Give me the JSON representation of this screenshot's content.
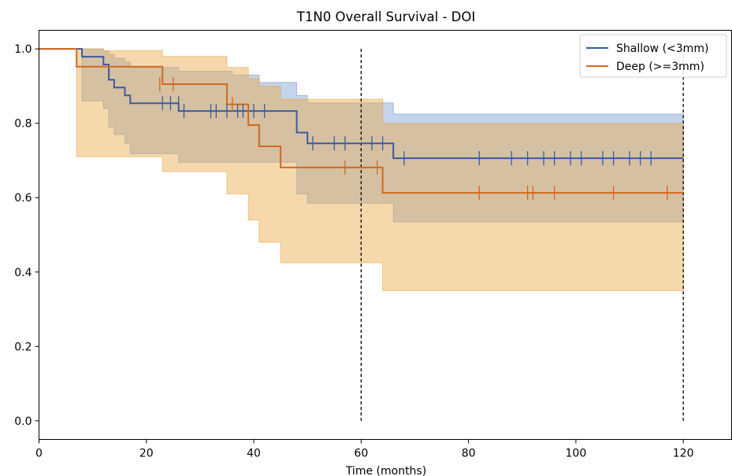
{
  "chart_data": {
    "type": "line",
    "title": "T1N0 Overall Survival - DOI",
    "xlabel": "Time (months)",
    "ylabel": "",
    "xlim": [
      0,
      129
    ],
    "ylim": [
      -0.05,
      1.05
    ],
    "xticks": [
      0,
      20,
      40,
      60,
      80,
      100,
      120
    ],
    "xtick_labels": [
      "0",
      "20",
      "40",
      "60",
      "80",
      "100",
      "120"
    ],
    "yticks": [
      0.0,
      0.2,
      0.4,
      0.6,
      0.8,
      1.0
    ],
    "ytick_labels": [
      "0.0",
      "0.2",
      "0.4",
      "0.6",
      "0.8",
      "1.0"
    ],
    "grid": false,
    "legend_position": "top-right",
    "reference_lines_x": [
      60,
      120
    ],
    "series": [
      {
        "name": "Shallow (<3mm)",
        "color": "#3a5ba0",
        "band_color": "#7a9fd3",
        "steps": [
          [
            0,
            1.0
          ],
          [
            8,
            0.979
          ],
          [
            12,
            0.958
          ],
          [
            13,
            0.917
          ],
          [
            14,
            0.896
          ],
          [
            16,
            0.875
          ],
          [
            17,
            0.854
          ],
          [
            26,
            0.833
          ],
          [
            48,
            0.775
          ],
          [
            50,
            0.746
          ],
          [
            66,
            0.706
          ],
          [
            120,
            0.706
          ]
        ],
        "ci_upper": [
          [
            0,
            1.0
          ],
          [
            8,
            1.0
          ],
          [
            12,
            0.995
          ],
          [
            13,
            0.985
          ],
          [
            14,
            0.975
          ],
          [
            16,
            0.965
          ],
          [
            17,
            0.95
          ],
          [
            26,
            0.94
          ],
          [
            36,
            0.93
          ],
          [
            41,
            0.91
          ],
          [
            48,
            0.875
          ],
          [
            50,
            0.855
          ],
          [
            66,
            0.825
          ],
          [
            120,
            0.825
          ]
        ],
        "ci_lower": [
          [
            0,
            1.0
          ],
          [
            8,
            0.86
          ],
          [
            12,
            0.84
          ],
          [
            13,
            0.79
          ],
          [
            14,
            0.77
          ],
          [
            16,
            0.745
          ],
          [
            17,
            0.718
          ],
          [
            26,
            0.695
          ],
          [
            48,
            0.61
          ],
          [
            50,
            0.585
          ],
          [
            66,
            0.535
          ],
          [
            120,
            0.535
          ]
        ],
        "censored": [
          [
            23,
            0.854
          ],
          [
            24.5,
            0.854
          ],
          [
            26,
            0.854
          ],
          [
            27,
            0.833
          ],
          [
            32,
            0.833
          ],
          [
            33,
            0.833
          ],
          [
            35,
            0.833
          ],
          [
            37,
            0.833
          ],
          [
            38,
            0.833
          ],
          [
            40,
            0.833
          ],
          [
            42,
            0.833
          ],
          [
            51,
            0.746
          ],
          [
            55,
            0.746
          ],
          [
            57,
            0.746
          ],
          [
            62,
            0.746
          ],
          [
            64,
            0.746
          ],
          [
            68,
            0.706
          ],
          [
            82,
            0.706
          ],
          [
            88,
            0.706
          ],
          [
            91,
            0.706
          ],
          [
            94,
            0.706
          ],
          [
            96,
            0.706
          ],
          [
            99,
            0.706
          ],
          [
            101,
            0.706
          ],
          [
            105,
            0.706
          ],
          [
            107,
            0.706
          ],
          [
            110,
            0.706
          ],
          [
            112,
            0.706
          ],
          [
            114,
            0.706
          ]
        ]
      },
      {
        "name": "Deep (>=3mm)",
        "color": "#d2691e",
        "band_color": "#eba84a",
        "steps": [
          [
            0,
            1.0
          ],
          [
            7,
            0.952
          ],
          [
            23,
            0.905
          ],
          [
            35,
            0.851
          ],
          [
            39,
            0.795
          ],
          [
            41,
            0.738
          ],
          [
            45,
            0.681
          ],
          [
            64,
            0.613
          ],
          [
            120,
            0.613
          ]
        ],
        "ci_upper": [
          [
            0,
            1.0
          ],
          [
            7,
            1.0
          ],
          [
            12,
            0.995
          ],
          [
            23,
            0.98
          ],
          [
            35,
            0.95
          ],
          [
            39,
            0.92
          ],
          [
            41,
            0.9
          ],
          [
            45,
            0.865
          ],
          [
            64,
            0.8
          ],
          [
            120,
            0.8
          ]
        ],
        "ci_lower": [
          [
            0,
            1.0
          ],
          [
            7,
            0.71
          ],
          [
            23,
            0.67
          ],
          [
            35,
            0.61
          ],
          [
            39,
            0.54
          ],
          [
            41,
            0.48
          ],
          [
            45,
            0.425
          ],
          [
            64,
            0.35
          ],
          [
            120,
            0.35
          ]
        ],
        "censored": [
          [
            22.5,
            0.905
          ],
          [
            25,
            0.905
          ],
          [
            36,
            0.851
          ],
          [
            57,
            0.681
          ],
          [
            63,
            0.681
          ],
          [
            82,
            0.613
          ],
          [
            91,
            0.613
          ],
          [
            92,
            0.613
          ],
          [
            96,
            0.613
          ],
          [
            107,
            0.613
          ],
          [
            117,
            0.613
          ]
        ]
      }
    ]
  }
}
